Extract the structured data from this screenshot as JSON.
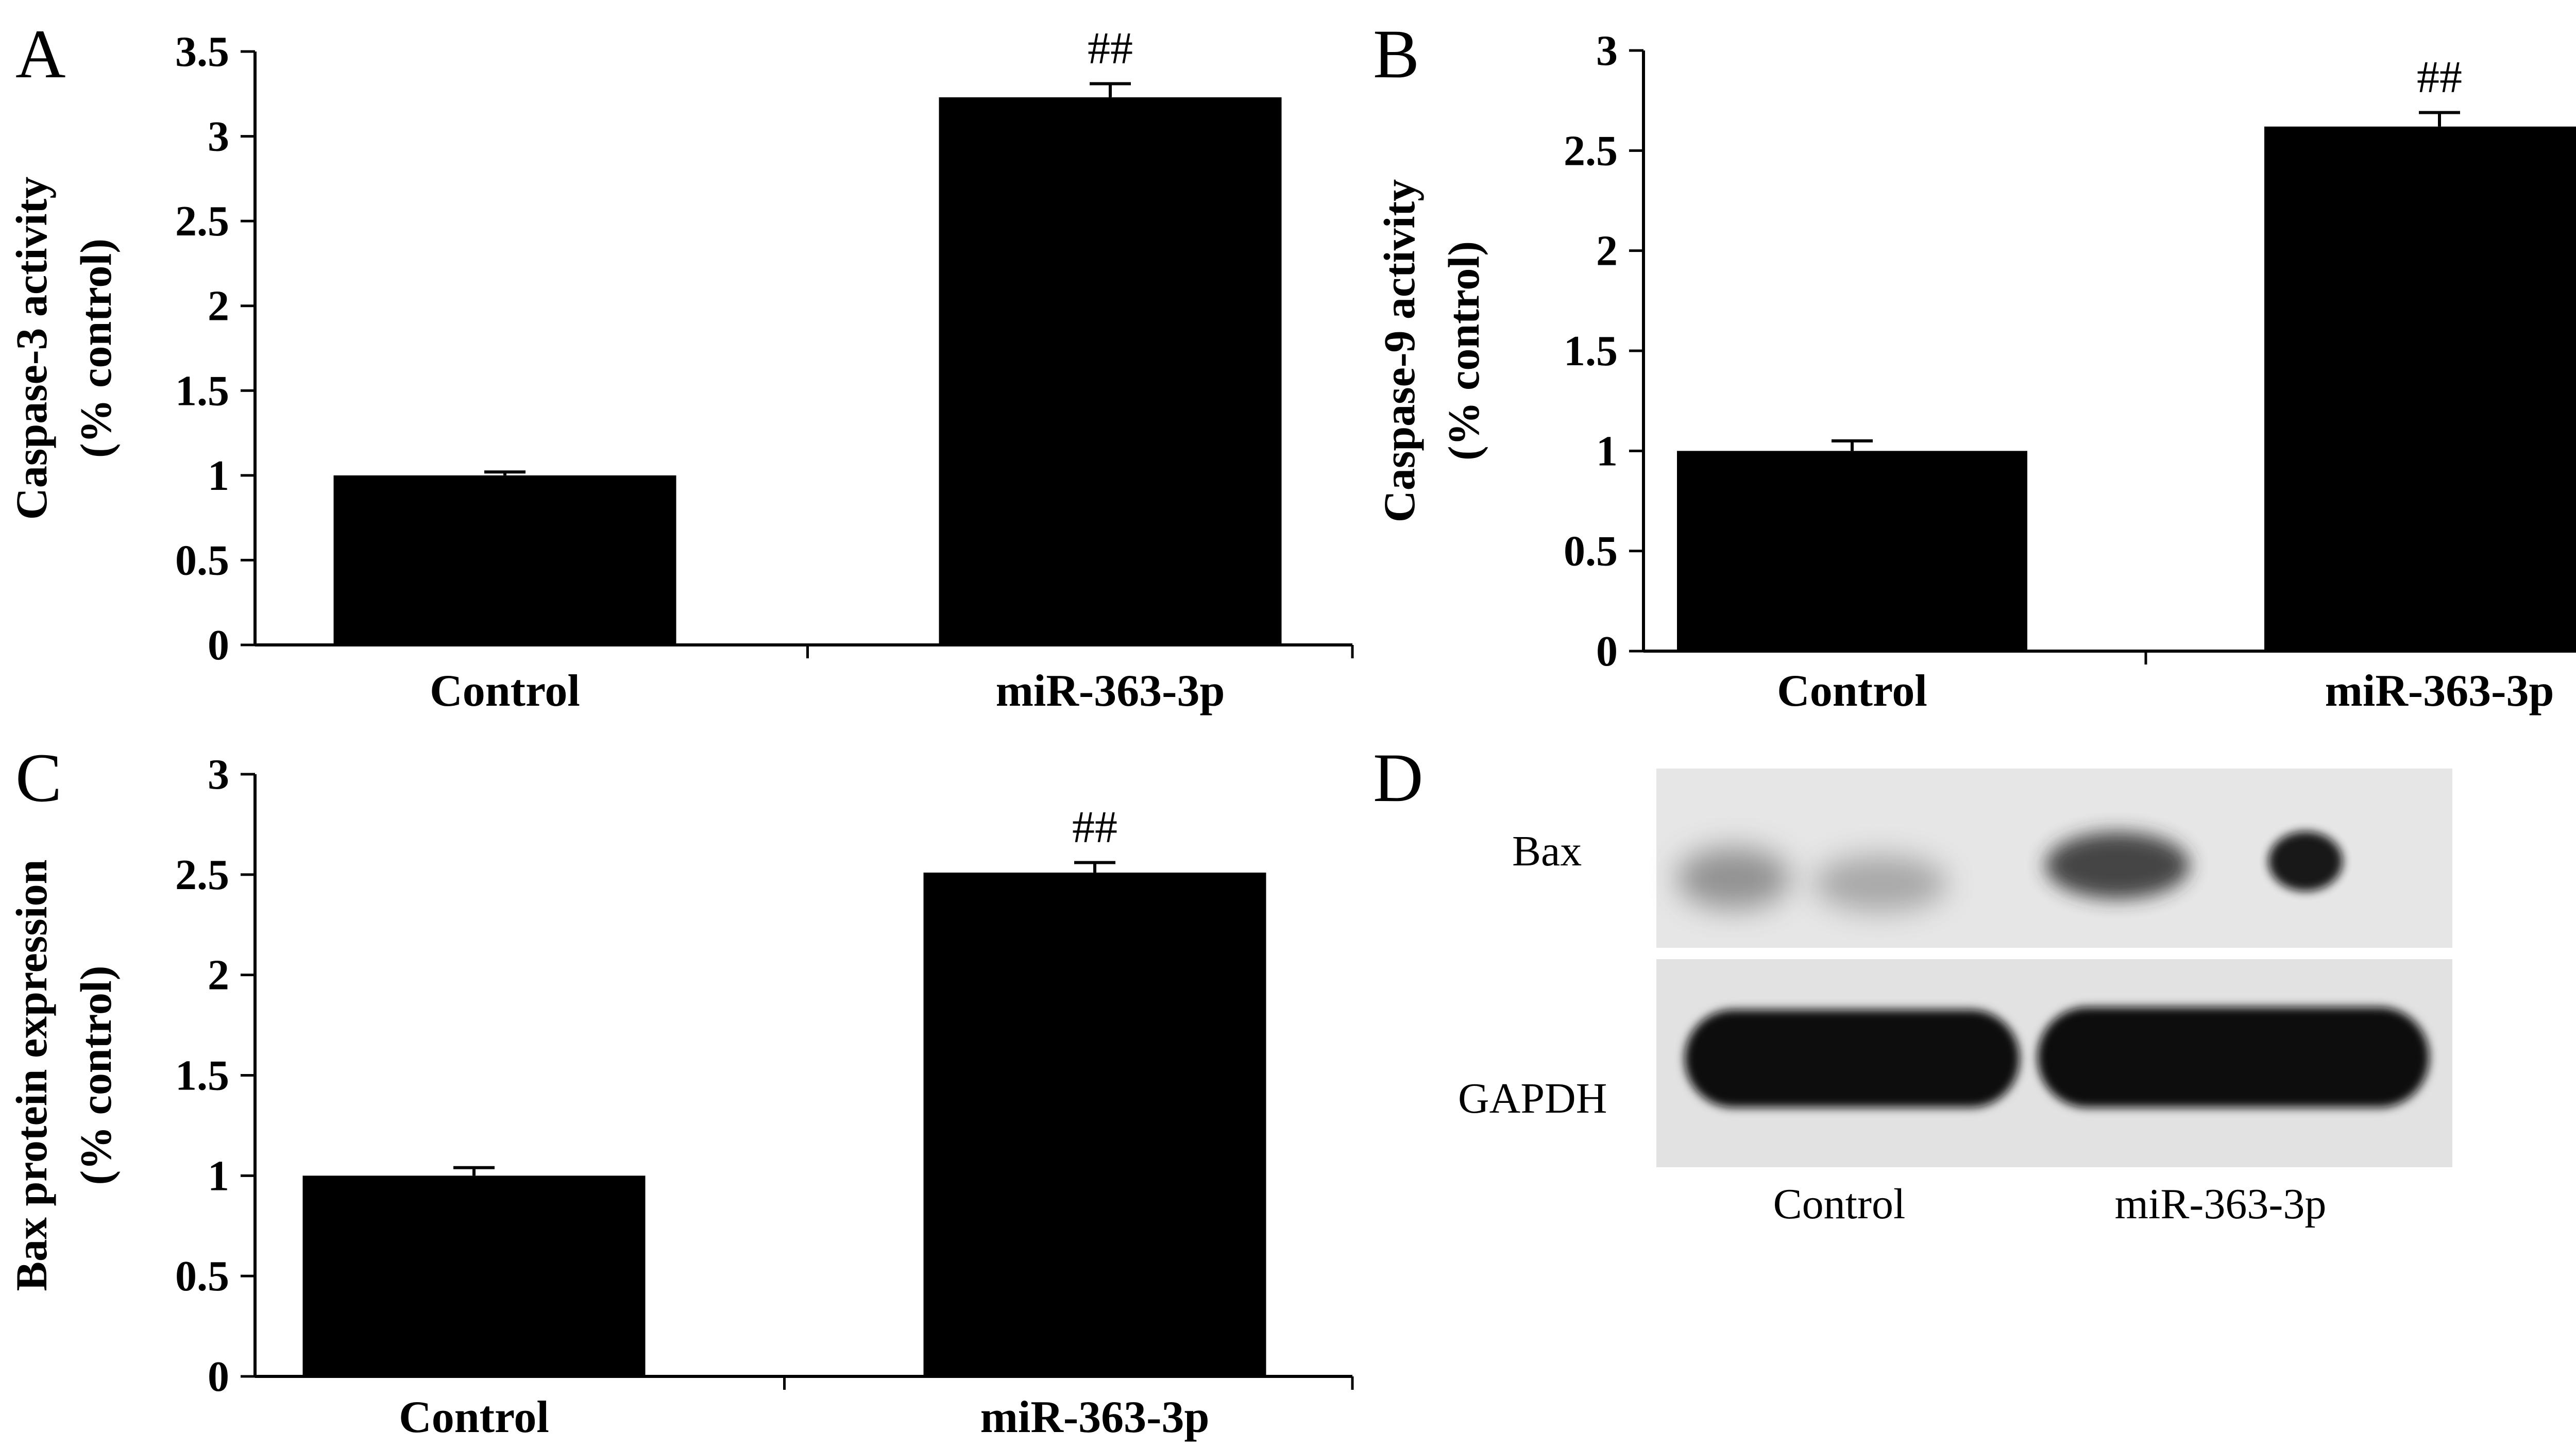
{
  "chart_data": [
    {
      "panel": "A",
      "type": "bar",
      "categories": [
        "Control",
        "miR-363-3p"
      ],
      "values": [
        1.0,
        3.23
      ],
      "errors": [
        0.02,
        0.08
      ],
      "annotations": [
        "",
        "##"
      ],
      "ylabel": [
        "Caspase-3 activity",
        "(% control)"
      ],
      "ylim": [
        0,
        3.5
      ],
      "yticks": [
        "0",
        "0.5",
        "1",
        "1.5",
        "2",
        "2.5",
        "3",
        "3.5"
      ],
      "bar_color": "#000000",
      "grid": false
    },
    {
      "panel": "B",
      "type": "bar",
      "categories": [
        "Control",
        "miR-363-3p"
      ],
      "values": [
        1.0,
        2.62
      ],
      "errors": [
        0.05,
        0.07
      ],
      "annotations": [
        "",
        "##"
      ],
      "ylabel": [
        "Caspase-9 activity",
        "(% control)"
      ],
      "ylim": [
        0,
        3
      ],
      "yticks": [
        "0",
        "0.5",
        "1",
        "1.5",
        "2",
        "2.5",
        "3"
      ],
      "bar_color": "#000000",
      "grid": false
    },
    {
      "panel": "C",
      "type": "bar",
      "categories": [
        "Control",
        "miR-363-3p"
      ],
      "values": [
        1.0,
        2.51
      ],
      "errors": [
        0.04,
        0.05
      ],
      "annotations": [
        "",
        "##"
      ],
      "ylabel": [
        "Bax protein expression",
        "(% control)"
      ],
      "ylim": [
        0,
        3
      ],
      "yticks": [
        "0",
        "0.5",
        "1",
        "1.5",
        "2",
        "2.5",
        "3"
      ],
      "bar_color": "#000000",
      "grid": false
    }
  ],
  "blot": {
    "panel": "D",
    "rows": [
      "Bax",
      "GAPDH"
    ],
    "lanes": [
      "Control",
      "miR-363-3p"
    ]
  }
}
